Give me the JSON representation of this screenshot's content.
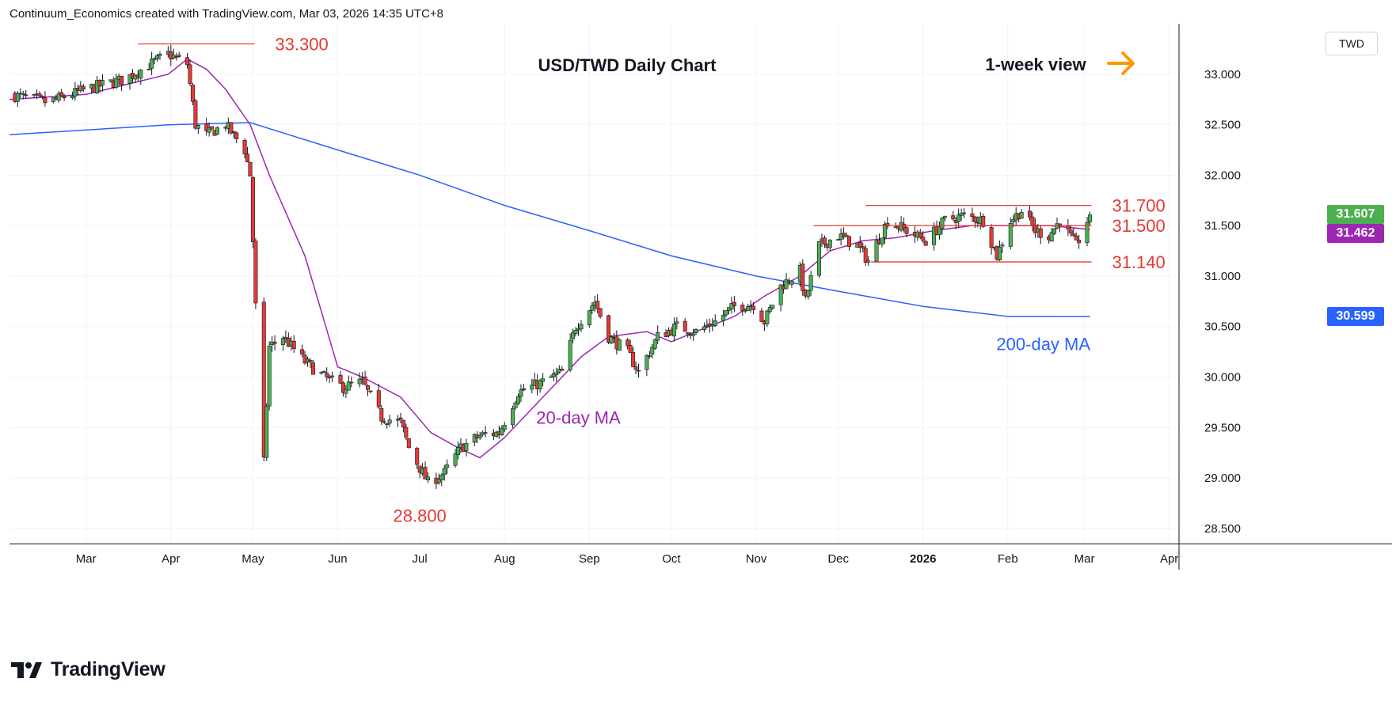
{
  "header": {
    "text": "Continuum_Economics created with TradingView.com, Mar 03, 2026 14:35 UTC+8"
  },
  "currency_button": {
    "label": "TWD"
  },
  "footer": {
    "brand": "TradingView",
    "logo_icon": "tradingview-logo-icon"
  },
  "colors": {
    "up": "#4caf50",
    "down": "#e53935",
    "ma20": "#9c27b0",
    "ma200": "#2962ff",
    "level": "#e53935",
    "arrow": "#ff9800",
    "grid": "#f0f3fa"
  },
  "price_tags": [
    {
      "label": "31.607",
      "value": 31.607,
      "color": "#4caf50"
    },
    {
      "label": "31.462",
      "value": 31.462,
      "color": "#9c27b0"
    },
    {
      "label": "30.599",
      "value": 30.599,
      "color": "#2962ff"
    }
  ],
  "chart_data": {
    "type": "candlestick",
    "title": "USD/TWD Daily Chart",
    "subtitle": "1-week view",
    "y_ticks": [
      "28.500",
      "29.000",
      "29.500",
      "30.000",
      "30.500",
      "31.000",
      "31.500",
      "32.000",
      "32.500",
      "33.000"
    ],
    "ylim": [
      28.35,
      33.5
    ],
    "x_ticks": [
      "Mar",
      "Apr",
      "May",
      "Jun",
      "Jul",
      "Aug",
      "Sep",
      "Oct",
      "Nov",
      "Dec",
      "2026",
      "Feb",
      "Mar",
      "Apr"
    ],
    "x_tick_dates": [
      "2025-03-01",
      "2025-04-01",
      "2025-05-01",
      "2025-06-01",
      "2025-07-01",
      "2025-08-01",
      "2025-09-01",
      "2025-10-01",
      "2025-11-01",
      "2025-12-01",
      "2026-01-01",
      "2026-02-01",
      "2026-03-01",
      "2026-04-01"
    ],
    "xlim": [
      "2025-02-01",
      "2026-04-04"
    ],
    "close_series": [
      [
        "2025-02-01",
        32.8
      ],
      [
        "2025-02-15",
        32.72
      ],
      [
        "2025-03-01",
        32.85
      ],
      [
        "2025-03-15",
        32.95
      ],
      [
        "2025-03-31",
        33.2
      ],
      [
        "2025-04-07",
        33.1
      ],
      [
        "2025-04-10",
        32.5
      ],
      [
        "2025-04-14",
        32.4
      ],
      [
        "2025-04-21",
        32.5
      ],
      [
        "2025-04-28",
        32.25
      ],
      [
        "2025-04-30",
        32.0
      ],
      [
        "2025-05-02",
        30.7
      ],
      [
        "2025-05-05",
        29.15
      ],
      [
        "2025-05-07",
        30.3
      ],
      [
        "2025-05-12",
        30.4
      ],
      [
        "2025-05-20",
        30.15
      ],
      [
        "2025-05-27",
        30.0
      ],
      [
        "2025-06-03",
        29.9
      ],
      [
        "2025-06-10",
        29.95
      ],
      [
        "2025-06-17",
        29.6
      ],
      [
        "2025-06-24",
        29.55
      ],
      [
        "2025-06-27",
        29.3
      ],
      [
        "2025-07-04",
        28.95
      ],
      [
        "2025-07-10",
        29.05
      ],
      [
        "2025-07-16",
        29.3
      ],
      [
        "2025-07-23",
        29.42
      ],
      [
        "2025-07-30",
        29.45
      ],
      [
        "2025-08-06",
        29.85
      ],
      [
        "2025-08-15",
        29.95
      ],
      [
        "2025-08-22",
        30.05
      ],
      [
        "2025-08-27",
        30.5
      ],
      [
        "2025-09-03",
        30.75
      ],
      [
        "2025-09-08",
        30.4
      ],
      [
        "2025-09-15",
        30.25
      ],
      [
        "2025-09-19",
        30.05
      ],
      [
        "2025-09-26",
        30.4
      ],
      [
        "2025-10-03",
        30.5
      ],
      [
        "2025-10-10",
        30.45
      ],
      [
        "2025-10-17",
        30.55
      ],
      [
        "2025-10-24",
        30.7
      ],
      [
        "2025-10-31",
        30.72
      ],
      [
        "2025-11-04",
        30.55
      ],
      [
        "2025-11-10",
        30.9
      ],
      [
        "2025-11-17",
        31.05
      ],
      [
        "2025-11-19",
        30.75
      ],
      [
        "2025-11-24",
        31.3
      ],
      [
        "2025-12-01",
        31.4
      ],
      [
        "2025-12-08",
        31.3
      ],
      [
        "2025-12-12",
        31.15
      ],
      [
        "2025-12-19",
        31.55
      ],
      [
        "2025-12-26",
        31.45
      ],
      [
        "2026-01-02",
        31.35
      ],
      [
        "2026-01-09",
        31.55
      ],
      [
        "2026-01-16",
        31.6
      ],
      [
        "2026-01-23",
        31.55
      ],
      [
        "2026-01-28",
        31.2
      ],
      [
        "2026-02-02",
        31.55
      ],
      [
        "2026-02-06",
        31.65
      ],
      [
        "2026-02-11",
        31.45
      ],
      [
        "2026-02-16",
        31.4
      ],
      [
        "2026-02-20",
        31.55
      ],
      [
        "2026-02-26",
        31.3
      ],
      [
        "2026-03-03",
        31.607
      ]
    ],
    "series": [
      {
        "name": "20-day MA",
        "values": [
          [
            "2025-02-01",
            32.75
          ],
          [
            "2025-03-01",
            32.8
          ],
          [
            "2025-03-31",
            33.0
          ],
          [
            "2025-04-07",
            33.15
          ],
          [
            "2025-04-14",
            33.05
          ],
          [
            "2025-04-21",
            32.85
          ],
          [
            "2025-04-30",
            32.5
          ],
          [
            "2025-05-07",
            32.0
          ],
          [
            "2025-05-20",
            31.2
          ],
          [
            "2025-06-01",
            30.1
          ],
          [
            "2025-06-10",
            30.0
          ],
          [
            "2025-06-24",
            29.8
          ],
          [
            "2025-07-05",
            29.45
          ],
          [
            "2025-07-15",
            29.3
          ],
          [
            "2025-07-23",
            29.2
          ],
          [
            "2025-08-01",
            29.4
          ],
          [
            "2025-08-15",
            29.8
          ],
          [
            "2025-08-29",
            30.2
          ],
          [
            "2025-09-08",
            30.4
          ],
          [
            "2025-09-22",
            30.45
          ],
          [
            "2025-10-01",
            30.35
          ],
          [
            "2025-10-10",
            30.45
          ],
          [
            "2025-10-24",
            30.6
          ],
          [
            "2025-11-04",
            30.8
          ],
          [
            "2025-11-17",
            31.0
          ],
          [
            "2025-11-28",
            31.25
          ],
          [
            "2025-12-10",
            31.35
          ],
          [
            "2025-12-22",
            31.38
          ],
          [
            "2026-01-05",
            31.45
          ],
          [
            "2026-01-19",
            31.5
          ],
          [
            "2026-02-02",
            31.5
          ],
          [
            "2026-02-16",
            31.5
          ],
          [
            "2026-03-03",
            31.462
          ]
        ]
      },
      {
        "name": "200-day MA",
        "values": [
          [
            "2025-02-01",
            32.4
          ],
          [
            "2025-04-01",
            32.5
          ],
          [
            "2025-04-30",
            32.52
          ],
          [
            "2025-06-01",
            32.25
          ],
          [
            "2025-07-01",
            32.0
          ],
          [
            "2025-08-01",
            31.7
          ],
          [
            "2025-09-01",
            31.45
          ],
          [
            "2025-10-01",
            31.2
          ],
          [
            "2025-11-01",
            31.0
          ],
          [
            "2025-12-01",
            30.85
          ],
          [
            "2026-01-01",
            30.7
          ],
          [
            "2026-02-01",
            30.6
          ],
          [
            "2026-02-16",
            30.6
          ],
          [
            "2026-03-03",
            30.599
          ]
        ]
      }
    ],
    "levels": [
      {
        "label": "33.300",
        "value": 33.3,
        "from": "2025-03-20",
        "to": "2025-05-01",
        "label_pos": "right"
      },
      {
        "label": "31.700",
        "value": 31.7,
        "from": "2025-12-11",
        "to": "2026-03-03",
        "label_pos": "right"
      },
      {
        "label": "31.500",
        "value": 31.5,
        "from": "2025-11-22",
        "to": "2026-03-03",
        "label_pos": "right"
      },
      {
        "label": "31.140",
        "value": 31.14,
        "from": "2025-12-13",
        "to": "2026-03-03",
        "label_pos": "right"
      },
      {
        "label": "28.800",
        "value": 28.8,
        "at": "2025-07-01",
        "label_pos": "below"
      }
    ],
    "annotations": [
      {
        "label": "20-day MA",
        "date": "2025-08-28",
        "value": 29.6,
        "color": "#9c27b0"
      },
      {
        "label": "200-day MA",
        "date": "2026-02-14",
        "value": 30.33,
        "color": "#2962ff"
      }
    ],
    "arrow_icon": "right-arrow-icon"
  }
}
